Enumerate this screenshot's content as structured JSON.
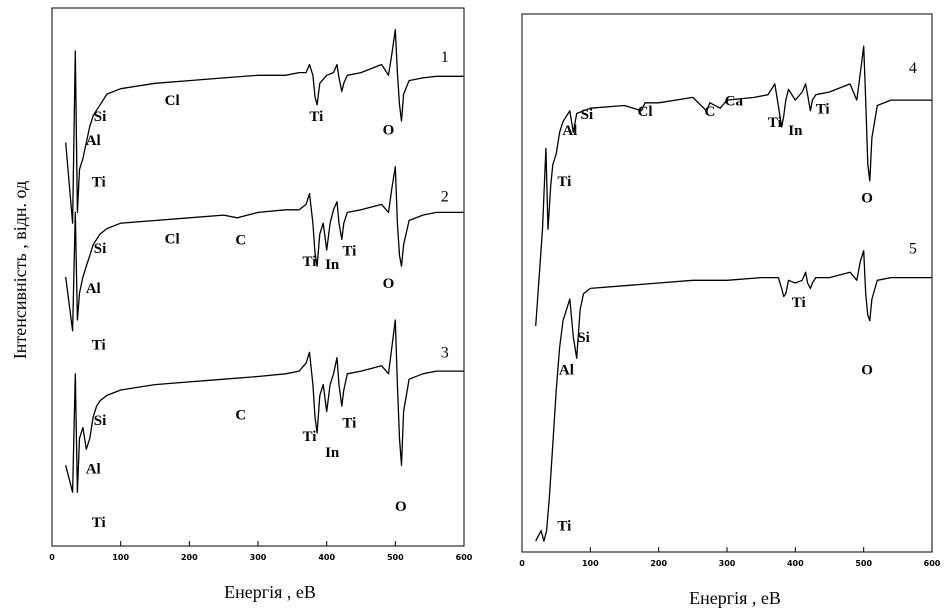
{
  "chart_data": [
    {
      "type": "line",
      "panel": "left",
      "title": "",
      "xlabel": "Енергія ,  eB",
      "ylabel": "Інтенсивність ,  відн. од",
      "xlim": [
        0,
        600
      ],
      "xticks": [
        0,
        100,
        200,
        300,
        400,
        500,
        600
      ],
      "grid": false,
      "series": [
        {
          "name": "1",
          "x": [
            20,
            30,
            34,
            37,
            40,
            45,
            50,
            55,
            60,
            65,
            70,
            80,
            100,
            150,
            200,
            250,
            300,
            340,
            360,
            370,
            375,
            380,
            383,
            386,
            390,
            400,
            410,
            415,
            418,
            422,
            425,
            430,
            450,
            480,
            490,
            495,
            500,
            503,
            506,
            509,
            512,
            520,
            540,
            560,
            600
          ],
          "y": [
            0.75,
            0.6,
            0.92,
            0.62,
            0.7,
            0.72,
            0.75,
            0.78,
            0.8,
            0.81,
            0.82,
            0.84,
            0.85,
            0.86,
            0.865,
            0.87,
            0.875,
            0.875,
            0.88,
            0.88,
            0.895,
            0.875,
            0.835,
            0.82,
            0.86,
            0.875,
            0.88,
            0.895,
            0.87,
            0.845,
            0.86,
            0.875,
            0.88,
            0.895,
            0.875,
            0.915,
            0.96,
            0.88,
            0.82,
            0.79,
            0.84,
            0.865,
            0.87,
            0.873,
            0.873
          ]
        },
        {
          "name": "2",
          "x": [
            20,
            30,
            34,
            37,
            40,
            45,
            50,
            55,
            60,
            65,
            70,
            80,
            100,
            150,
            200,
            250,
            270,
            300,
            340,
            360,
            370,
            375,
            380,
            383,
            386,
            390,
            395,
            400,
            405,
            410,
            415,
            418,
            422,
            425,
            430,
            450,
            480,
            490,
            495,
            500,
            503,
            506,
            509,
            512,
            520,
            540,
            560,
            600
          ],
          "y": [
            0.5,
            0.4,
            0.62,
            0.42,
            0.47,
            0.5,
            0.52,
            0.54,
            0.56,
            0.57,
            0.58,
            0.59,
            0.6,
            0.605,
            0.61,
            0.615,
            0.61,
            0.62,
            0.625,
            0.625,
            0.635,
            0.655,
            0.6,
            0.545,
            0.52,
            0.58,
            0.6,
            0.55,
            0.6,
            0.625,
            0.64,
            0.6,
            0.57,
            0.6,
            0.62,
            0.625,
            0.635,
            0.62,
            0.665,
            0.705,
            0.6,
            0.54,
            0.52,
            0.56,
            0.605,
            0.615,
            0.62,
            0.62
          ]
        },
        {
          "name": "3",
          "x": [
            20,
            30,
            34,
            37,
            40,
            45,
            50,
            55,
            60,
            65,
            70,
            80,
            100,
            150,
            200,
            250,
            300,
            340,
            360,
            370,
            375,
            380,
            383,
            386,
            390,
            395,
            400,
            405,
            410,
            415,
            418,
            422,
            425,
            430,
            450,
            480,
            490,
            495,
            500,
            503,
            506,
            509,
            512,
            520,
            540,
            560,
            600
          ],
          "y": [
            0.15,
            0.1,
            0.32,
            0.1,
            0.2,
            0.22,
            0.18,
            0.2,
            0.24,
            0.26,
            0.27,
            0.28,
            0.29,
            0.3,
            0.305,
            0.31,
            0.315,
            0.32,
            0.325,
            0.34,
            0.36,
            0.3,
            0.24,
            0.21,
            0.28,
            0.3,
            0.25,
            0.3,
            0.32,
            0.35,
            0.3,
            0.26,
            0.29,
            0.32,
            0.325,
            0.335,
            0.32,
            0.37,
            0.42,
            0.3,
            0.2,
            0.15,
            0.25,
            0.31,
            0.32,
            0.325,
            0.325
          ]
        }
      ],
      "annotations": [
        {
          "text": "Si",
          "x": 70,
          "y": 0.79
        },
        {
          "text": "Cl",
          "x": 175,
          "y": 0.82
        },
        {
          "text": "Al",
          "x": 60,
          "y": 0.745
        },
        {
          "text": "Ti",
          "x": 385,
          "y": 0.79
        },
        {
          "text": "Ti",
          "x": 68,
          "y": 0.668
        },
        {
          "text": "O",
          "x": 490,
          "y": 0.765
        },
        {
          "text": "Si",
          "x": 70,
          "y": 0.545
        },
        {
          "text": "Cl",
          "x": 175,
          "y": 0.562
        },
        {
          "text": "C",
          "x": 275,
          "y": 0.56
        },
        {
          "text": "Al",
          "x": 60,
          "y": 0.47
        },
        {
          "text": "Ti",
          "x": 375,
          "y": 0.52
        },
        {
          "text": "In",
          "x": 408,
          "y": 0.515
        },
        {
          "text": "Ti",
          "x": 433,
          "y": 0.54
        },
        {
          "text": "O",
          "x": 490,
          "y": 0.48
        },
        {
          "text": "Ti",
          "x": 68,
          "y": 0.365
        },
        {
          "text": "Si",
          "x": 70,
          "y": 0.225
        },
        {
          "text": "C",
          "x": 275,
          "y": 0.235
        },
        {
          "text": "Ti",
          "x": 375,
          "y": 0.195
        },
        {
          "text": "In",
          "x": 408,
          "y": 0.165
        },
        {
          "text": "Ti",
          "x": 433,
          "y": 0.22
        },
        {
          "text": "Al",
          "x": 60,
          "y": 0.135
        },
        {
          "text": "O",
          "x": 508,
          "y": 0.065
        },
        {
          "text": "Ti",
          "x": 68,
          "y": 0.035
        },
        {
          "text": "1",
          "x": 572,
          "y": 0.9
        },
        {
          "text": "2",
          "x": 572,
          "y": 0.64
        },
        {
          "text": "3",
          "x": 572,
          "y": 0.35
        }
      ]
    },
    {
      "type": "line",
      "panel": "right",
      "title": "",
      "xlabel": "Енергія ,  eB",
      "ylabel": "",
      "xlim": [
        0,
        600
      ],
      "xticks": [
        0,
        100,
        200,
        300,
        400,
        500,
        600
      ],
      "grid": false,
      "series": [
        {
          "name": "4",
          "x": [
            20,
            30,
            35,
            38,
            42,
            45,
            50,
            55,
            60,
            70,
            75,
            80,
            90,
            100,
            150,
            175,
            180,
            200,
            250,
            270,
            275,
            290,
            300,
            340,
            360,
            370,
            375,
            380,
            383,
            386,
            390,
            400,
            410,
            415,
            418,
            422,
            425,
            430,
            450,
            480,
            490,
            495,
            500,
            503,
            506,
            509,
            512,
            520,
            540,
            560,
            600
          ],
          "y": [
            0.42,
            0.6,
            0.75,
            0.6,
            0.68,
            0.72,
            0.74,
            0.78,
            0.8,
            0.82,
            0.78,
            0.815,
            0.82,
            0.825,
            0.83,
            0.82,
            0.835,
            0.835,
            0.845,
            0.82,
            0.835,
            0.825,
            0.84,
            0.845,
            0.85,
            0.87,
            0.83,
            0.79,
            0.81,
            0.84,
            0.86,
            0.84,
            0.855,
            0.87,
            0.85,
            0.82,
            0.84,
            0.85,
            0.855,
            0.87,
            0.84,
            0.89,
            0.94,
            0.84,
            0.72,
            0.69,
            0.77,
            0.83,
            0.84,
            0.84,
            0.84
          ]
        },
        {
          "name": "5",
          "x": [
            20,
            28,
            32,
            36,
            40,
            45,
            50,
            55,
            60,
            65,
            70,
            75,
            80,
            85,
            90,
            100,
            150,
            200,
            250,
            300,
            350,
            375,
            380,
            383,
            386,
            390,
            400,
            410,
            415,
            418,
            422,
            425,
            430,
            450,
            480,
            490,
            495,
            500,
            503,
            506,
            509,
            512,
            520,
            540,
            560,
            600
          ],
          "y": [
            0.02,
            0.04,
            0.02,
            0.04,
            0.1,
            0.2,
            0.3,
            0.38,
            0.43,
            0.45,
            0.47,
            0.4,
            0.36,
            0.45,
            0.48,
            0.49,
            0.495,
            0.5,
            0.505,
            0.505,
            0.51,
            0.51,
            0.49,
            0.475,
            0.48,
            0.505,
            0.5,
            0.505,
            0.52,
            0.5,
            0.49,
            0.5,
            0.51,
            0.51,
            0.52,
            0.505,
            0.54,
            0.56,
            0.48,
            0.44,
            0.43,
            0.47,
            0.505,
            0.51,
            0.51,
            0.51
          ]
        }
      ],
      "annotations": [
        {
          "text": "Si",
          "x": 95,
          "y": 0.805
        },
        {
          "text": "Cl",
          "x": 180,
          "y": 0.81
        },
        {
          "text": "C",
          "x": 275,
          "y": 0.81
        },
        {
          "text": "Ca",
          "x": 310,
          "y": 0.83
        },
        {
          "text": "Al",
          "x": 70,
          "y": 0.775
        },
        {
          "text": "Ti",
          "x": 370,
          "y": 0.79
        },
        {
          "text": "In",
          "x": 400,
          "y": 0.775
        },
        {
          "text": "Ti",
          "x": 440,
          "y": 0.815
        },
        {
          "text": "Ti",
          "x": 62,
          "y": 0.68
        },
        {
          "text": "O",
          "x": 505,
          "y": 0.65
        },
        {
          "text": "Ti",
          "x": 405,
          "y": 0.455
        },
        {
          "text": "Si",
          "x": 90,
          "y": 0.39
        },
        {
          "text": "Al",
          "x": 65,
          "y": 0.33
        },
        {
          "text": "O",
          "x": 505,
          "y": 0.33
        },
        {
          "text": "Ti",
          "x": 62,
          "y": 0.04
        },
        {
          "text": "4",
          "x": 572,
          "y": 0.89
        },
        {
          "text": "5",
          "x": 572,
          "y": 0.555
        }
      ]
    }
  ]
}
